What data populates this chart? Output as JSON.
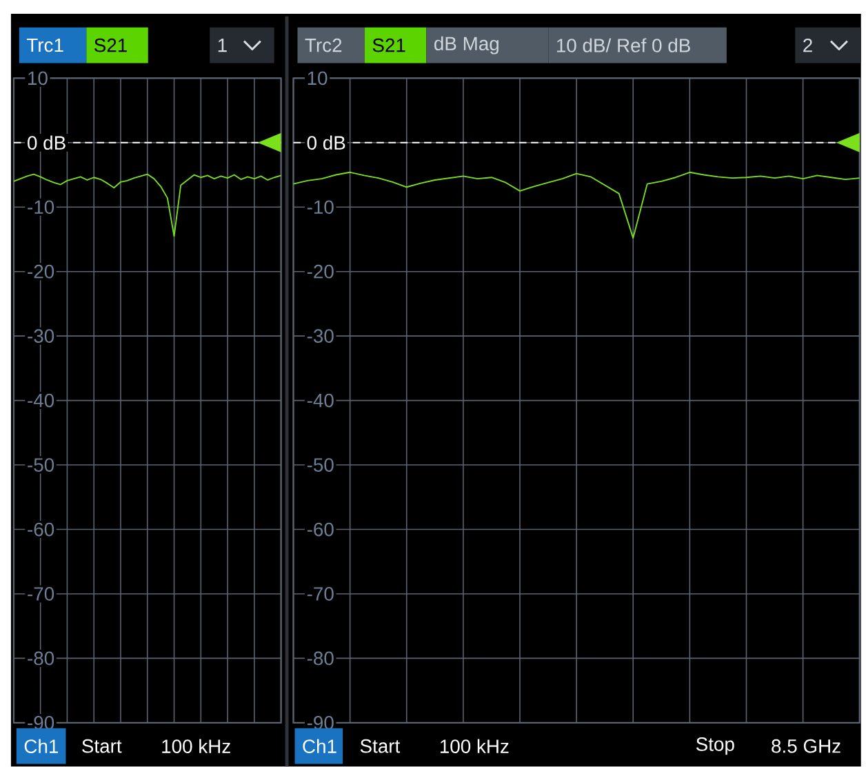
{
  "chart_data": [
    {
      "type": "line",
      "categories": [
        null,
        null,
        null,
        null,
        null,
        null,
        null,
        null,
        null,
        null,
        null,
        null,
        null,
        null,
        null,
        null,
        null,
        null,
        null,
        null,
        null,
        null,
        null,
        null,
        null,
        null,
        null,
        null,
        null,
        null,
        null,
        null,
        null,
        null,
        null,
        null,
        null,
        null,
        null,
        null,
        null
      ],
      "series": [
        {
          "color": "#7ae01c",
          "values": [
            -6.0,
            -5.6,
            -5.2,
            -4.9,
            -5.3,
            -5.8,
            -6.2,
            -6.5,
            -5.9,
            -5.6,
            -5.3,
            -5.8,
            -5.4,
            -5.7,
            -6.3,
            -7.0,
            -6.1,
            -5.9,
            -5.5,
            -5.2,
            -4.9,
            -5.6,
            -6.8,
            -8.6,
            -14.5,
            -6.6,
            -5.8,
            -5.0,
            -5.4,
            -5.1,
            -5.6,
            -5.2,
            -5.5,
            -5.0,
            -5.7,
            -5.3,
            -5.6,
            -5.2,
            -5.8,
            -5.4,
            -5.1
          ]
        }
      ],
      "ylim": [
        -90,
        10
      ],
      "yticks": [
        10,
        {
          "value": 0,
          "label": null
        },
        -10,
        -20,
        -30,
        -40,
        -50,
        -60,
        -70,
        -80,
        -90
      ],
      "grid": true,
      "tick_labels": "y",
      "ref_lines": [
        {
          "axis": "y",
          "value": 0,
          "label": "0 dB",
          "line_style": "dashed"
        }
      ],
      "annotations": [
        "Trc1",
        "S21",
        "1",
        "Ch1",
        "Start",
        "100 kHz"
      ]
    },
    {
      "type": "line",
      "categories": [
        null,
        null,
        null,
        null,
        null,
        null,
        null,
        null,
        null,
        null,
        null,
        null,
        null,
        null,
        null,
        null,
        null,
        null,
        null,
        null,
        null,
        null,
        null,
        null,
        null,
        null,
        null,
        null,
        null,
        null,
        null,
        null,
        null,
        null,
        null,
        null,
        null,
        null,
        null,
        null,
        null
      ],
      "series": [
        {
          "color": "#7ae01c",
          "values": [
            -6.4,
            -5.9,
            -5.6,
            -5.0,
            -4.6,
            -5.1,
            -5.5,
            -6.1,
            -6.9,
            -6.3,
            -5.8,
            -5.5,
            -5.2,
            -5.6,
            -5.4,
            -6.2,
            -7.5,
            -6.8,
            -6.2,
            -5.6,
            -4.8,
            -5.3,
            -6.6,
            -7.9,
            -14.8,
            -6.4,
            -6.0,
            -5.4,
            -4.6,
            -5.0,
            -5.3,
            -5.5,
            -5.4,
            -5.2,
            -5.5,
            -5.2,
            -5.6,
            -5.1,
            -5.4,
            -5.7,
            -5.5
          ]
        }
      ],
      "ylim": [
        -90,
        10
      ],
      "yticks": [
        10,
        {
          "value": 0,
          "label": null
        },
        -10,
        -20,
        -30,
        -40,
        -50,
        -60,
        -70,
        -80,
        -90
      ],
      "grid": true,
      "tick_labels": "y",
      "ref_lines": [
        {
          "axis": "y",
          "value": 0,
          "label": "0 dB",
          "line_style": "dashed"
        }
      ],
      "annotations": [
        "Trc2",
        "S21",
        "dB Mag",
        "10 dB/ Ref 0 dB",
        "2",
        "Ch1",
        "Start",
        "100 kHz",
        "Stop",
        "8.5 GHz"
      ]
    }
  ]
}
